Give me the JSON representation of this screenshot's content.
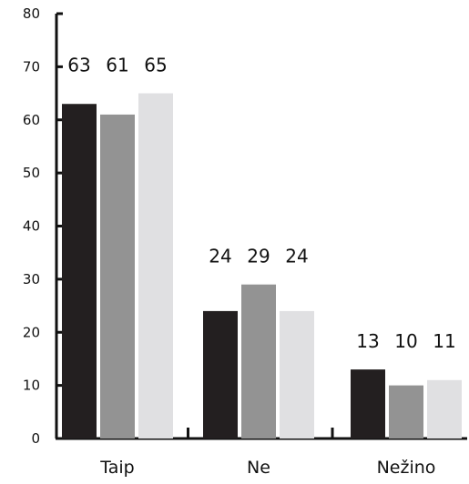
{
  "chart_data": {
    "type": "bar",
    "categories": [
      "Taip",
      "Ne",
      "Nežino"
    ],
    "series": [
      {
        "values": [
          63,
          24,
          13
        ],
        "color": "#231f20"
      },
      {
        "values": [
          61,
          29,
          10
        ],
        "color": "#939393"
      },
      {
        "values": [
          65,
          24,
          11
        ],
        "color": "#e0e0e2"
      }
    ],
    "ylim": [
      0,
      80
    ],
    "yticks": [
      0,
      10,
      20,
      30,
      40,
      50,
      60,
      70,
      80
    ],
    "title": "",
    "xlabel": "",
    "ylabel": "",
    "grid": false,
    "data_labels": true
  }
}
